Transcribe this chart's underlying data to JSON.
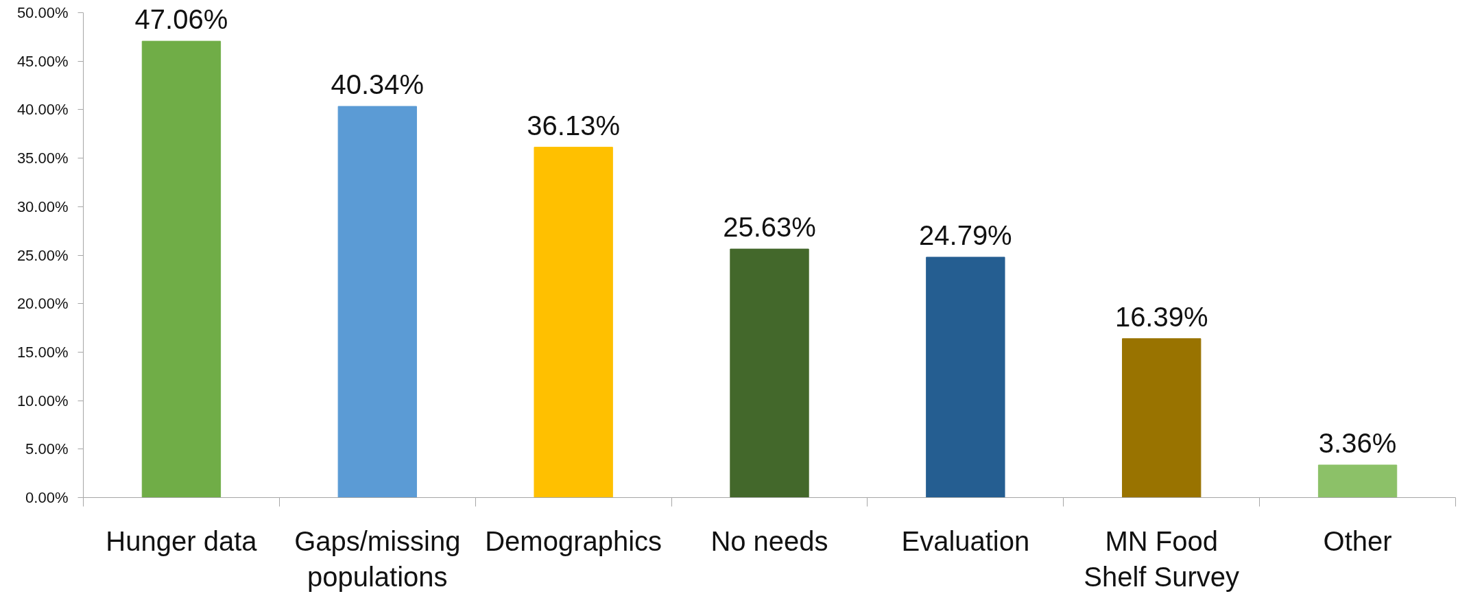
{
  "chart_data": {
    "type": "bar",
    "categories": [
      "Hunger data",
      "Gaps/missing populations",
      "Demographics",
      "No needs",
      "Evaluation",
      "MN Food Shelf Survey",
      "Other"
    ],
    "values": [
      47.06,
      40.34,
      36.13,
      25.63,
      24.79,
      16.39,
      3.36
    ],
    "colors": [
      "#70ad47",
      "#5b9bd5",
      "#ffc000",
      "#43682b",
      "#255e91",
      "#997300",
      "#8cc168"
    ],
    "value_labels": [
      "47.06%",
      "40.34%",
      "36.13%",
      "25.63%",
      "24.79%",
      "16.39%",
      "3.36%"
    ],
    "ylim": [
      0,
      50
    ],
    "yticks": [
      {
        "value": 0,
        "label": "0.00%"
      },
      {
        "value": 5,
        "label": "5.00%"
      },
      {
        "value": 10,
        "label": "10.00%"
      },
      {
        "value": 15,
        "label": "15.00%"
      },
      {
        "value": 20,
        "label": "20.00%"
      },
      {
        "value": 25,
        "label": "25.00%"
      },
      {
        "value": 30,
        "label": "30.00%"
      },
      {
        "value": 35,
        "label": "35.00%"
      },
      {
        "value": 40,
        "label": "40.00%"
      },
      {
        "value": 45,
        "label": "45.00%"
      },
      {
        "value": 50,
        "label": "50.00%"
      }
    ]
  }
}
